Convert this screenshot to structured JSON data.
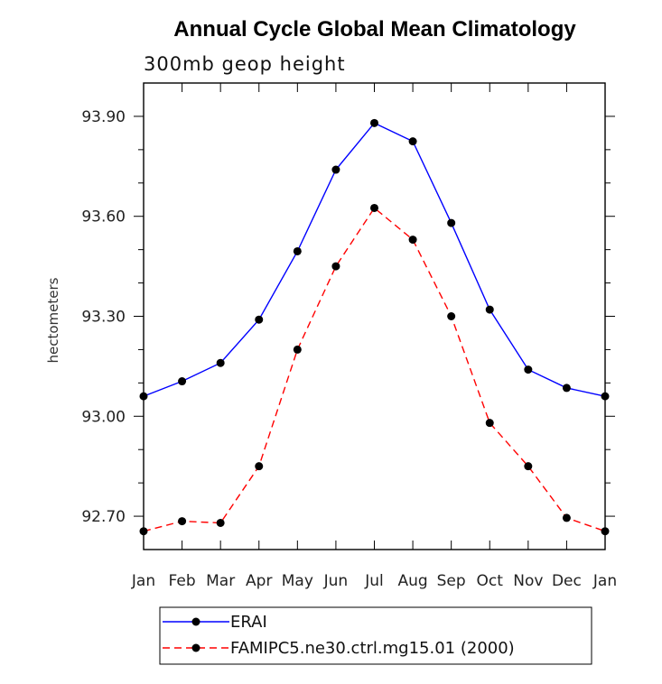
{
  "chart_data": {
    "type": "line",
    "title": "Annual Cycle Global Mean Climatology",
    "subtitle": "300mb geop height",
    "ylabel": "hectometers",
    "xlabel": "",
    "categories": [
      "Jan",
      "Feb",
      "Mar",
      "Apr",
      "May",
      "Jun",
      "Jul",
      "Aug",
      "Sep",
      "Oct",
      "Nov",
      "Dec",
      "Jan"
    ],
    "ylim": [
      92.6,
      94.0
    ],
    "yticks": [
      "93.90",
      "93.60",
      "93.30",
      "93.00",
      "92.70"
    ],
    "series": [
      {
        "name": "ERAI",
        "color": "#0000ff",
        "dash": "solid",
        "values": [
          93.06,
          93.105,
          93.16,
          93.29,
          93.495,
          93.74,
          93.88,
          93.825,
          93.58,
          93.32,
          93.14,
          93.085,
          93.06
        ]
      },
      {
        "name": "FAMIPC5.ne30.ctrl.mg15.01 (2000)",
        "color": "#ff0000",
        "dash": "dashed",
        "values": [
          92.655,
          92.685,
          92.68,
          92.85,
          93.2,
          93.45,
          93.625,
          93.53,
          93.3,
          92.98,
          92.85,
          92.695,
          92.655
        ]
      }
    ],
    "legend_position": "bottom"
  }
}
